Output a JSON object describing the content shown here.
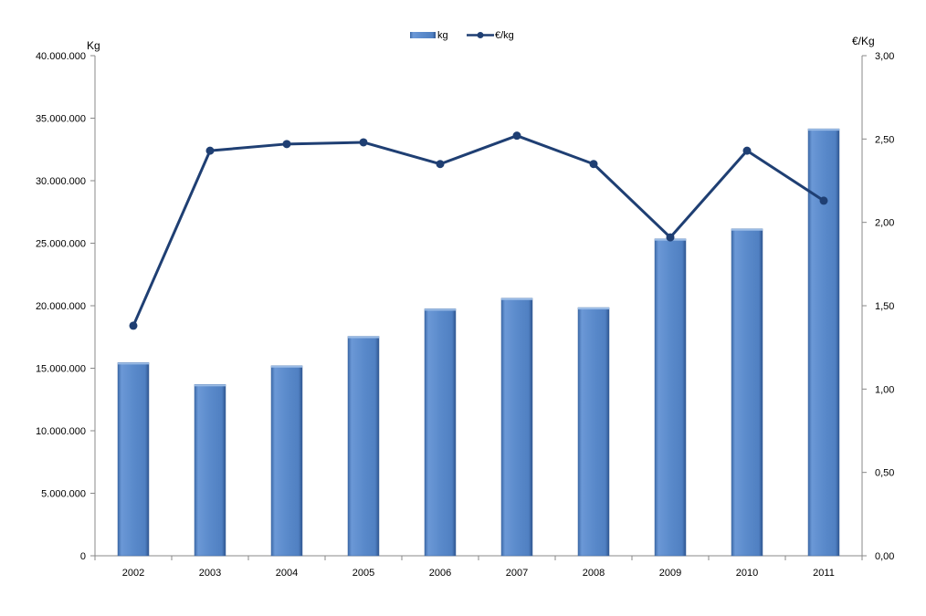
{
  "chart_data": {
    "type": "bar+line",
    "categories": [
      "2002",
      "2003",
      "2004",
      "2005",
      "2006",
      "2007",
      "2008",
      "2009",
      "2010",
      "2011"
    ],
    "series": [
      {
        "name": "kg",
        "type": "bar",
        "axis": "left",
        "color": "#5B8BCB",
        "values": [
          15450000,
          13700000,
          15200000,
          17550000,
          19750000,
          20600000,
          19850000,
          25350000,
          26150000,
          34150000
        ]
      },
      {
        "name": "€/kg",
        "type": "line",
        "axis": "right",
        "color": "#1F3F73",
        "values": [
          1.38,
          2.43,
          2.47,
          2.48,
          2.35,
          2.52,
          2.35,
          1.91,
          2.43,
          2.13
        ]
      }
    ],
    "ylabel_left": "Kg",
    "ylabel_right": "€/Kg",
    "ylim_left": [
      0,
      40000000
    ],
    "ylim_right": [
      0,
      3
    ],
    "yticks_left": [
      "0",
      "5.000.000",
      "10.000.000",
      "15.000.000",
      "20.000.000",
      "25.000.000",
      "30.000.000",
      "35.000.000",
      "40.000.000"
    ],
    "yticks_right": [
      "0,00",
      "0,50",
      "1,00",
      "1,50",
      "2,00",
      "2,50",
      "3,00"
    ],
    "grid": false,
    "legend_position": "top-center"
  }
}
